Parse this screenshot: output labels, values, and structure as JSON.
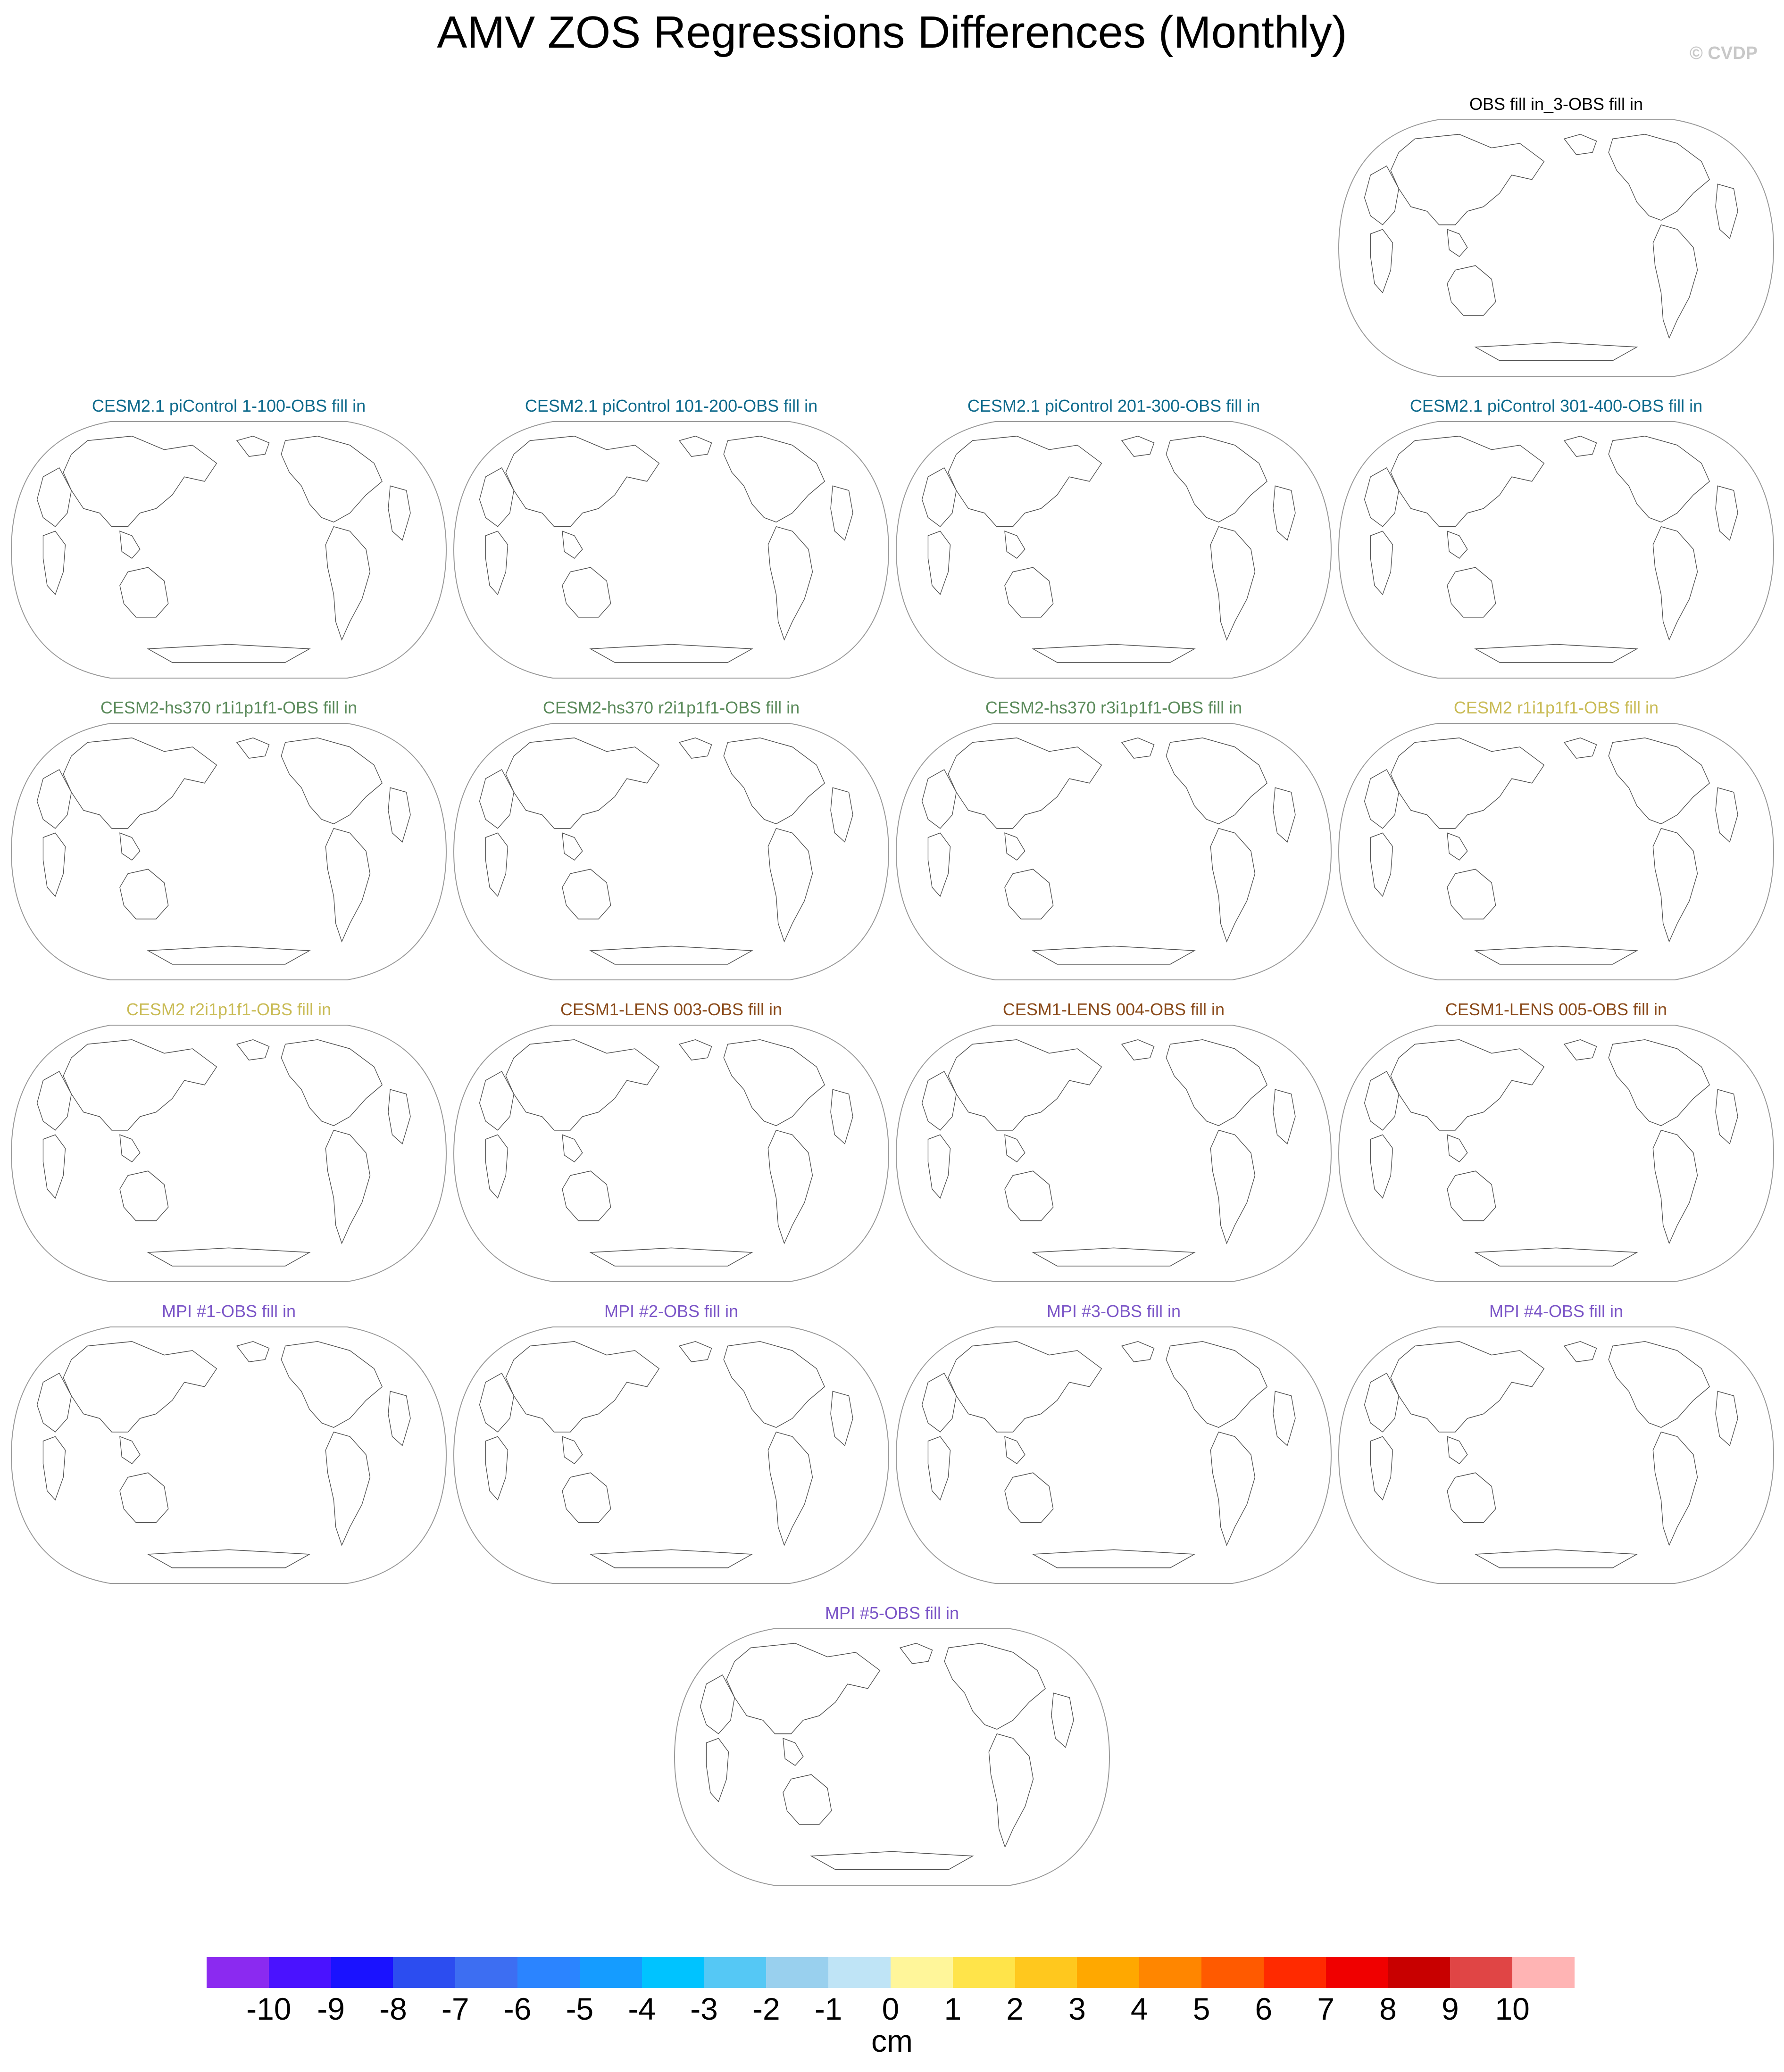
{
  "header": {
    "title": "AMV ZOS Regressions Differences (Monthly)",
    "credit": "© CVDP"
  },
  "chart_data": {
    "type": "map-panels",
    "title": "AMV ZOS Regressions Differences (Monthly)",
    "projection": "robinson",
    "panels": [
      {
        "title": "OBS fill in_3-OBS fill in",
        "color": "#000000"
      },
      {
        "title": "CESM2.1 piControl 1-100-OBS fill in",
        "color": "#0e6a8c"
      },
      {
        "title": "CESM2.1 piControl 101-200-OBS fill in",
        "color": "#0e6a8c"
      },
      {
        "title": "CESM2.1 piControl 201-300-OBS fill in",
        "color": "#0e6a8c"
      },
      {
        "title": "CESM2.1 piControl 301-400-OBS fill in",
        "color": "#0e6a8c"
      },
      {
        "title": "CESM2-hs370 r1i1p1f1-OBS fill in",
        "color": "#5a8a5a"
      },
      {
        "title": "CESM2-hs370 r2i1p1f1-OBS fill in",
        "color": "#5a8a5a"
      },
      {
        "title": "CESM2-hs370 r3i1p1f1-OBS fill in",
        "color": "#5a8a5a"
      },
      {
        "title": "CESM2 r1i1p1f1-OBS fill in",
        "color": "#c9bb55"
      },
      {
        "title": "CESM2 r2i1p1f1-OBS fill in",
        "color": "#c9bb55"
      },
      {
        "title": "CESM1-LENS 003-OBS fill in",
        "color": "#8a4a1a"
      },
      {
        "title": "CESM1-LENS 004-OBS fill in",
        "color": "#8a4a1a"
      },
      {
        "title": "CESM1-LENS 005-OBS fill in",
        "color": "#8a4a1a"
      },
      {
        "title": "MPI #1-OBS fill in",
        "color": "#7b55c7"
      },
      {
        "title": "MPI #2-OBS fill in",
        "color": "#7b55c7"
      },
      {
        "title": "MPI #3-OBS fill in",
        "color": "#7b55c7"
      },
      {
        "title": "MPI #4-OBS fill in",
        "color": "#7b55c7"
      },
      {
        "title": "MPI #5-OBS fill in",
        "color": "#7b55c7"
      }
    ],
    "colorbar": {
      "units": "cm",
      "labels": [
        "-10",
        "-9",
        "-8",
        "-7",
        "-6",
        "-5",
        "-4",
        "-3",
        "-2",
        "-1",
        "0",
        "1",
        "2",
        "3",
        "4",
        "5",
        "6",
        "7",
        "8",
        "9",
        "10"
      ],
      "colors": [
        "#8b2af0",
        "#4a12ff",
        "#1a12ff",
        "#2c4df0",
        "#3d6ef2",
        "#2b84ff",
        "#159cff",
        "#00c3ff",
        "#55c8f5",
        "#99d0ee",
        "#bfe4f6",
        "#fff69a",
        "#ffe44a",
        "#ffc81e",
        "#ffa800",
        "#ff8600",
        "#ff5a00",
        "#ff2a00",
        "#f00000",
        "#c80000",
        "#e04545",
        "#ffb4b4"
      ]
    }
  }
}
